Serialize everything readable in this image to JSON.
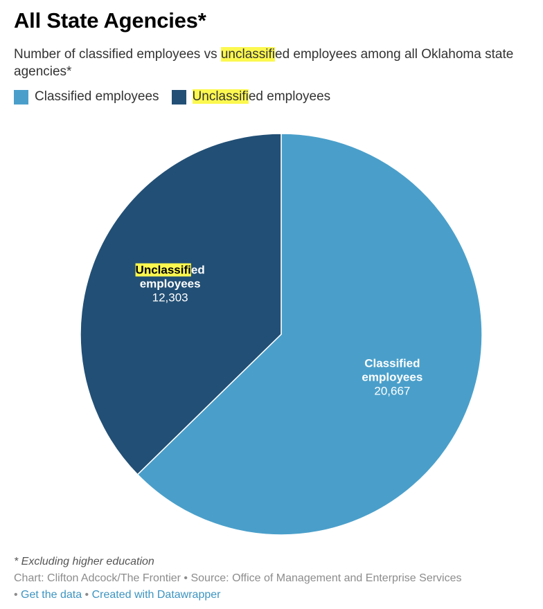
{
  "header": {
    "title": "All State Agencies*",
    "subtitle_parts": [
      "Number of classified employees vs ",
      "unclassifi",
      "ed employees among all Oklahoma state agencies*"
    ]
  },
  "legend": [
    {
      "label": "Classified employees",
      "color": "#4a9fca"
    },
    {
      "label_hl": "Unclassifi",
      "label_rest": "ed employees",
      "color": "#224f75"
    }
  ],
  "chart_data": {
    "type": "pie",
    "title": "All State Agencies*",
    "slices": [
      {
        "name": "Classified employees",
        "label_line1": "Classified",
        "label_line2": "employees",
        "value": 20667,
        "value_label": "20,667",
        "color": "#4a9fca"
      },
      {
        "name": "Unclassified employees",
        "label_hl": "Unclassifi",
        "label_rest": "ed",
        "label_line2": "employees",
        "value": 12303,
        "value_label": "12,303",
        "color": "#224f75"
      }
    ]
  },
  "footer": {
    "footnote": "* Excluding higher education",
    "credit": "Chart: Clifton Adcock/The Frontier • Source: Office of Management and Enterprise Services",
    "bullet": "• ",
    "get_data": "Get the data",
    "separator": " • ",
    "created_with": "Created with Datawrapper"
  }
}
